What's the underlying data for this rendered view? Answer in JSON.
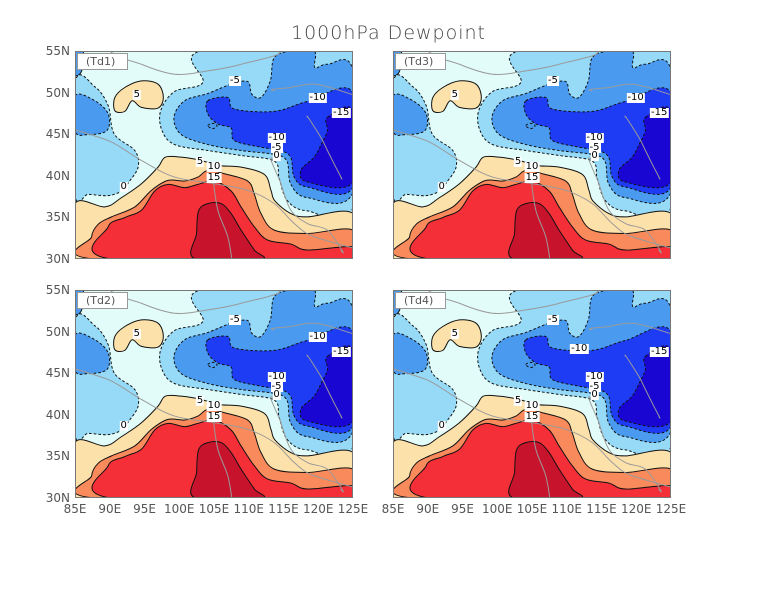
{
  "title": "1000hPa Dewpoint",
  "chart_data": {
    "type": "filled-contour-map",
    "title": "1000hPa Dewpoint",
    "xlim": [
      85,
      125
    ],
    "ylim": [
      30,
      55
    ],
    "x_ticks": [
      "85E",
      "90E",
      "95E",
      "100E",
      "105E",
      "110E",
      "115E",
      "120E",
      "125E"
    ],
    "y_ticks": [
      "55N",
      "50N",
      "45N",
      "40N",
      "35N",
      "30N"
    ],
    "contour_levels": [
      -15,
      -10,
      -5,
      0,
      5,
      10,
      15,
      20
    ],
    "fill_colors": [
      "#1a06d2",
      "#1f3cf5",
      "#4a9bef",
      "#96daf8",
      "#e2fdf9",
      "#fde1ab",
      "#f98a5c",
      "#f52f38",
      "#c8132c"
    ],
    "negative_contours": "dashed",
    "panels": [
      {
        "name": "(Td1)",
        "labels": [
          {
            "text": "-5",
            "lon": 108,
            "lat": 51.4
          },
          {
            "text": "-10",
            "lon": 119.9,
            "lat": 49.4
          },
          {
            "text": "-15",
            "lon": 123.3,
            "lat": 47.6
          },
          {
            "text": "-10",
            "lon": 114,
            "lat": 44.5
          },
          {
            "text": "-5",
            "lon": 114,
            "lat": 43.4
          },
          {
            "text": "0",
            "lon": 114,
            "lat": 42.4
          },
          {
            "text": "5",
            "lon": 93.9,
            "lat": 49.7
          },
          {
            "text": "5",
            "lon": 103,
            "lat": 41.6
          },
          {
            "text": "10",
            "lon": 105,
            "lat": 41
          },
          {
            "text": "15",
            "lon": 105,
            "lat": 39.7
          },
          {
            "text": "0",
            "lon": 92,
            "lat": 38.6
          }
        ]
      },
      {
        "name": "(Td3)",
        "labels": [
          {
            "text": "-5",
            "lon": 108,
            "lat": 51.4
          },
          {
            "text": "-10",
            "lon": 119.9,
            "lat": 49.4
          },
          {
            "text": "-15",
            "lon": 123.3,
            "lat": 47.6
          },
          {
            "text": "-10",
            "lon": 114,
            "lat": 44.5
          },
          {
            "text": "-5",
            "lon": 114,
            "lat": 43.4
          },
          {
            "text": "0",
            "lon": 114,
            "lat": 42.4
          },
          {
            "text": "5",
            "lon": 93.9,
            "lat": 49.7
          },
          {
            "text": "5",
            "lon": 103,
            "lat": 41.6
          },
          {
            "text": "10",
            "lon": 105,
            "lat": 41
          },
          {
            "text": "15",
            "lon": 105,
            "lat": 39.7
          },
          {
            "text": "0",
            "lon": 92,
            "lat": 38.6
          }
        ]
      },
      {
        "name": "(Td2)",
        "labels": [
          {
            "text": "-5",
            "lon": 108,
            "lat": 51.4
          },
          {
            "text": "-10",
            "lon": 119.9,
            "lat": 49.4
          },
          {
            "text": "-15",
            "lon": 123.3,
            "lat": 47.6
          },
          {
            "text": "-10",
            "lon": 114,
            "lat": 44.5
          },
          {
            "text": "-5",
            "lon": 114,
            "lat": 43.4
          },
          {
            "text": "0",
            "lon": 114,
            "lat": 42.4
          },
          {
            "text": "5",
            "lon": 93.9,
            "lat": 49.7
          },
          {
            "text": "5",
            "lon": 103,
            "lat": 41.6
          },
          {
            "text": "10",
            "lon": 105,
            "lat": 41
          },
          {
            "text": "15",
            "lon": 105,
            "lat": 39.7
          },
          {
            "text": "0",
            "lon": 92,
            "lat": 38.6
          }
        ]
      },
      {
        "name": "(Td4)",
        "labels": [
          {
            "text": "-5",
            "lon": 108,
            "lat": 51.4
          },
          {
            "text": "-10",
            "lon": 111.8,
            "lat": 47.9
          },
          {
            "text": "-15",
            "lon": 123.3,
            "lat": 47.6
          },
          {
            "text": "-10",
            "lon": 114,
            "lat": 44.5
          },
          {
            "text": "-5",
            "lon": 114,
            "lat": 43.4
          },
          {
            "text": "0",
            "lon": 114,
            "lat": 42.4
          },
          {
            "text": "5",
            "lon": 93.9,
            "lat": 49.7
          },
          {
            "text": "5",
            "lon": 103,
            "lat": 41.6
          },
          {
            "text": "10",
            "lon": 105,
            "lat": 41
          },
          {
            "text": "15",
            "lon": 105,
            "lat": 39.7
          },
          {
            "text": "0",
            "lon": 92,
            "lat": 38.6
          }
        ]
      }
    ]
  }
}
